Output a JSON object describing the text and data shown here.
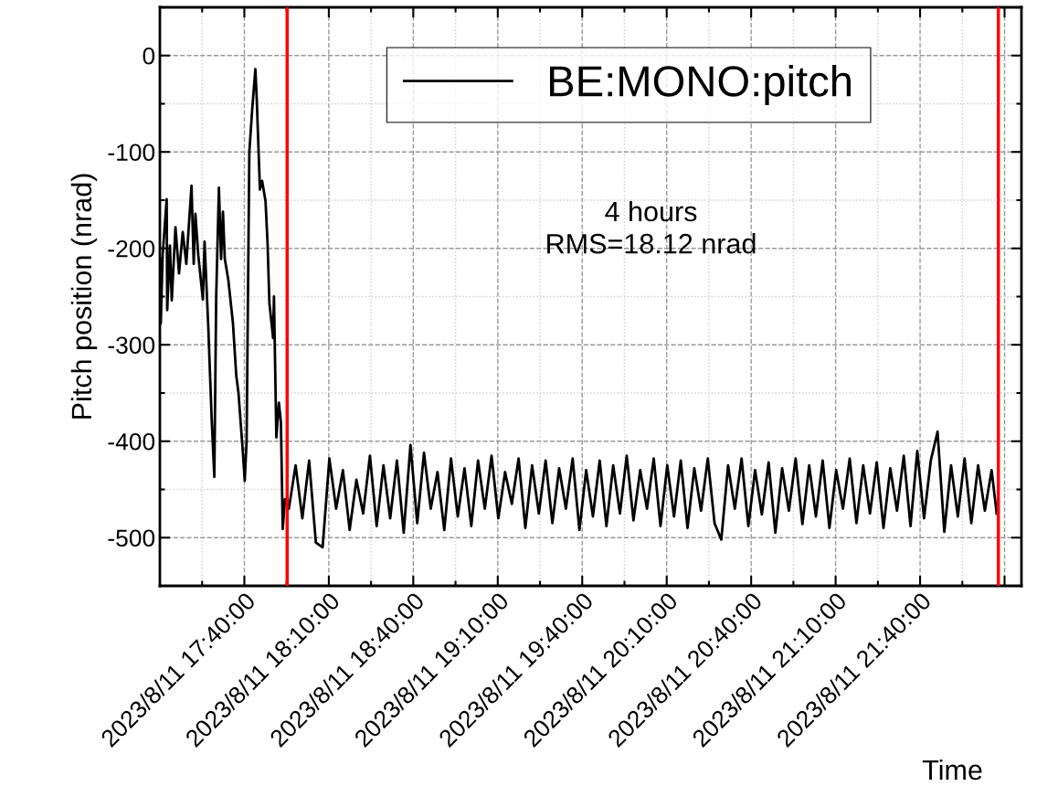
{
  "chart_data": {
    "type": "line",
    "xlabel": "Time",
    "ylabel": "Pitch position (nrad)",
    "series": [
      {
        "name": "BE:MONO:pitch",
        "color": "#000000",
        "x": [
          "2023-08-11T17:10:01",
          "2023-08-11T17:10:19",
          "2023-08-11T17:10:59",
          "2023-08-11T17:12:25",
          "2023-08-11T17:12:36",
          "2023-08-11T17:13:34",
          "2023-08-11T17:14:13",
          "2023-08-11T17:15:32",
          "2023-08-11T17:16:48",
          "2023-08-11T17:18:07",
          "2023-08-11T17:19:23",
          "2023-08-11T17:21:14",
          "2023-08-11T17:22:01",
          "2023-08-11T17:22:37",
          "2023-08-11T17:23:38",
          "2023-08-11T17:25:16",
          "2023-08-11T17:25:52",
          "2023-08-11T17:27:11",
          "2023-08-11T17:28:23",
          "2023-08-11T17:29:20",
          "2023-08-11T17:30:00",
          "2023-08-11T17:30:58",
          "2023-08-11T17:31:44",
          "2023-08-11T17:32:24",
          "2023-08-11T17:33:04",
          "2023-08-11T17:34:19",
          "2023-08-11T17:35:56",
          "2023-08-11T17:37:08",
          "2023-08-11T17:37:55",
          "2023-08-11T17:39:29",
          "2023-08-11T17:40:08",
          "2023-08-11T17:40:48",
          "2023-08-11T17:41:46",
          "2023-08-11T17:42:47",
          "2023-08-11T17:43:55",
          "2023-08-11T17:44:24",
          "2023-08-11T17:45:32",
          "2023-08-11T17:46:19",
          "2023-08-11T17:47:31",
          "2023-08-11T17:48:14",
          "2023-08-11T17:48:54",
          "2023-08-11T17:50:13",
          "2023-08-11T17:50:31",
          "2023-08-11T17:51:22",
          "2023-08-11T17:52:16",
          "2023-08-11T17:52:59",
          "2023-08-11T17:53:38",
          "2023-08-11T17:54:25",
          "2023-08-11T17:55:48",
          "2023-08-11T17:58:12",
          "2023-08-11T18:00:36",
          "2023-08-11T18:03:00",
          "2023-08-11T18:05:24",
          "2023-08-11T18:07:48",
          "2023-08-11T18:10:12",
          "2023-08-11T18:12:36",
          "2023-08-11T18:15:00",
          "2023-08-11T18:17:24",
          "2023-08-11T18:19:48",
          "2023-08-11T18:22:12",
          "2023-08-11T18:24:36",
          "2023-08-11T18:27:00",
          "2023-08-11T18:29:24",
          "2023-08-11T18:31:48",
          "2023-08-11T18:34:12",
          "2023-08-11T18:36:36",
          "2023-08-11T18:39:00",
          "2023-08-11T18:41:24",
          "2023-08-11T18:43:48",
          "2023-08-11T18:46:12",
          "2023-08-11T18:48:36",
          "2023-08-11T18:51:00",
          "2023-08-11T18:53:24",
          "2023-08-11T18:55:48",
          "2023-08-11T18:58:12",
          "2023-08-11T19:00:36",
          "2023-08-11T19:03:00",
          "2023-08-11T19:05:24",
          "2023-08-11T19:07:48",
          "2023-08-11T19:10:12",
          "2023-08-11T19:12:36",
          "2023-08-11T19:15:00",
          "2023-08-11T19:17:24",
          "2023-08-11T19:19:48",
          "2023-08-11T19:22:12",
          "2023-08-11T19:24:36",
          "2023-08-11T19:27:00",
          "2023-08-11T19:29:24",
          "2023-08-11T19:31:48",
          "2023-08-11T19:34:12",
          "2023-08-11T19:36:36",
          "2023-08-11T19:39:00",
          "2023-08-11T19:41:24",
          "2023-08-11T19:43:48",
          "2023-08-11T19:46:12",
          "2023-08-11T19:48:36",
          "2023-08-11T19:51:00",
          "2023-08-11T19:53:24",
          "2023-08-11T19:55:48",
          "2023-08-11T19:58:12",
          "2023-08-11T20:00:36",
          "2023-08-11T20:03:00",
          "2023-08-11T20:05:24",
          "2023-08-11T20:07:48",
          "2023-08-11T20:10:12",
          "2023-08-11T20:12:36",
          "2023-08-11T20:15:00",
          "2023-08-11T20:17:24",
          "2023-08-11T20:19:48",
          "2023-08-11T20:22:12",
          "2023-08-11T20:24:36",
          "2023-08-11T20:27:00",
          "2023-08-11T20:29:24",
          "2023-08-11T20:31:48",
          "2023-08-11T20:34:12",
          "2023-08-11T20:36:36",
          "2023-08-11T20:39:00",
          "2023-08-11T20:41:24",
          "2023-08-11T20:43:48",
          "2023-08-11T20:46:12",
          "2023-08-11T20:48:36",
          "2023-08-11T20:51:00",
          "2023-08-11T20:53:24",
          "2023-08-11T20:55:48",
          "2023-08-11T20:58:12",
          "2023-08-11T21:00:36",
          "2023-08-11T21:03:00",
          "2023-08-11T21:05:24",
          "2023-08-11T21:07:48",
          "2023-08-11T21:10:12",
          "2023-08-11T21:12:36",
          "2023-08-11T21:15:00",
          "2023-08-11T21:17:24",
          "2023-08-11T21:19:48",
          "2023-08-11T21:22:12",
          "2023-08-11T21:24:36",
          "2023-08-11T21:27:00",
          "2023-08-11T21:29:24",
          "2023-08-11T21:31:48",
          "2023-08-11T21:34:12",
          "2023-08-11T21:36:36",
          "2023-08-11T21:39:00",
          "2023-08-11T21:41:24",
          "2023-08-11T21:43:48",
          "2023-08-11T21:46:12",
          "2023-08-11T21:48:36",
          "2023-08-11T21:51:00",
          "2023-08-11T21:53:24",
          "2023-08-11T21:55:48",
          "2023-08-11T21:58:12",
          "2023-08-11T22:00:36",
          "2023-08-11T22:03:00",
          "2023-08-11T22:05:24",
          "2023-08-11T22:07:12"
        ],
        "values": [
          -210,
          -278,
          -207,
          -149,
          -264,
          -197,
          -254,
          -178,
          -226,
          -183,
          -216,
          -135,
          -216,
          -164,
          -207,
          -253,
          -193,
          -281,
          -376,
          -437,
          -250,
          -137,
          -211,
          -162,
          -211,
          -233,
          -277,
          -332,
          -350,
          -412,
          -441,
          -400,
          -100,
          -56,
          -14,
          -45,
          -139,
          -130,
          -151,
          -194,
          -257,
          -293,
          -250,
          -396,
          -360,
          -380,
          -491,
          -460,
          -470,
          -425,
          -480,
          -420,
          -505,
          -510,
          -418,
          -470,
          -430,
          -492,
          -440,
          -475,
          -415,
          -488,
          -425,
          -480,
          -420,
          -495,
          -404,
          -485,
          -412,
          -470,
          -432,
          -492,
          -418,
          -478,
          -428,
          -488,
          -420,
          -470,
          -415,
          -480,
          -432,
          -465,
          -418,
          -490,
          -425,
          -475,
          -420,
          -485,
          -428,
          -470,
          -418,
          -492,
          -430,
          -478,
          -420,
          -488,
          -425,
          -475,
          -415,
          -482,
          -430,
          -470,
          -418,
          -488,
          -425,
          -478,
          -420,
          -490,
          -428,
          -472,
          -418,
          -485,
          -502,
          -425,
          -470,
          -418,
          -488,
          -430,
          -476,
          -422,
          -495,
          -428,
          -472,
          -418,
          -486,
          -425,
          -478,
          -420,
          -490,
          -430,
          -470,
          -418,
          -485,
          -425,
          -475,
          -422,
          -490,
          -428,
          -472,
          -415,
          -488,
          -410,
          -480,
          -420,
          -390,
          -494,
          -425,
          -478,
          -418,
          -485,
          -425,
          -472,
          -430,
          -475
        ]
      }
    ],
    "xlim": [
      "2023-08-11T17:10:00",
      "2023-08-11T22:16:00"
    ],
    "xticks": [
      {
        "value": "2023-08-11T17:40:00",
        "label": "2023/8/11 17:40:00"
      },
      {
        "value": "2023-08-11T18:10:00",
        "label": "2023/8/11 18:10:00"
      },
      {
        "value": "2023-08-11T18:40:00",
        "label": "2023/8/11 18:40:00"
      },
      {
        "value": "2023-08-11T19:10:00",
        "label": "2023/8/11 19:10:00"
      },
      {
        "value": "2023-08-11T19:40:00",
        "label": "2023/8/11 19:40:00"
      },
      {
        "value": "2023-08-11T20:10:00",
        "label": "2023/8/11 20:10:00"
      },
      {
        "value": "2023-08-11T20:40:00",
        "label": "2023/8/11 20:40:00"
      },
      {
        "value": "2023-08-11T21:10:00",
        "label": "2023/8/11 21:10:00"
      },
      {
        "value": "2023-08-11T21:40:00",
        "label": "2023/8/11 21:40:00"
      },
      {
        "value": "2023-08-11T22:10:00",
        "label": null
      }
    ],
    "ylim": [
      -550,
      50
    ],
    "yticks": [
      0,
      -100,
      -200,
      -300,
      -400,
      -500
    ],
    "ref_lines": [
      {
        "axis": "x",
        "value": "2023-08-11T17:55:12",
        "color": "#ff0000"
      },
      {
        "axis": "x",
        "value": "2023-08-11T22:07:48",
        "color": "#ff0000"
      }
    ],
    "annotations": [
      "4 hours\nRMS=18.12 nrad"
    ],
    "grid": true,
    "legend": "top right",
    "line_style": "solid",
    "marker": "none"
  }
}
